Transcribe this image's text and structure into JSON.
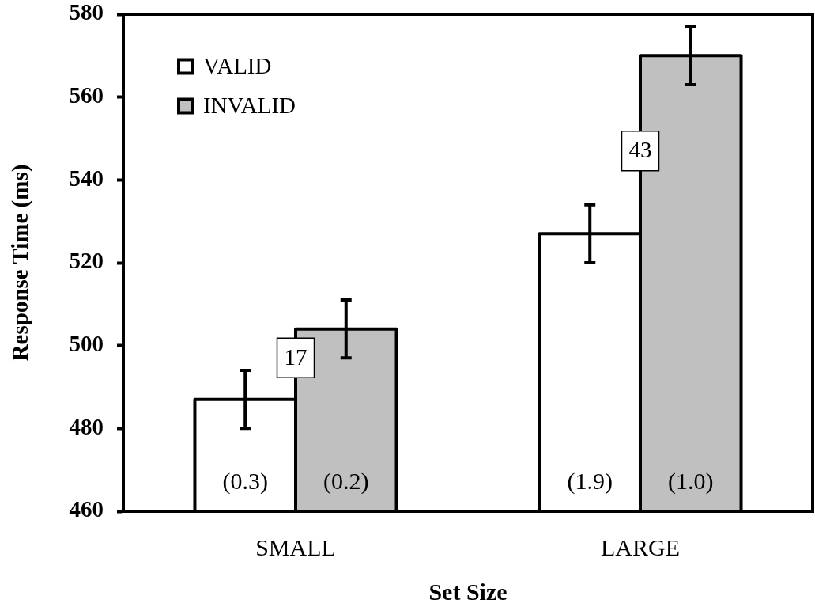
{
  "chart_data": {
    "type": "bar",
    "categories": [
      "SMALL",
      "LARGE"
    ],
    "xlabel": "Set Size",
    "ylabel": "Response Time (ms)",
    "series": [
      {
        "name": "VALID",
        "color": "#ffffff",
        "values": [
          487,
          527
        ],
        "errors": [
          7,
          7
        ]
      },
      {
        "name": "INVALID",
        "color": "#c0c0c0",
        "values": [
          504,
          570
        ],
        "errors": [
          7,
          7
        ]
      }
    ],
    "ylim": [
      460,
      580
    ],
    "yticks": [
      460,
      480,
      500,
      520,
      540,
      560,
      580
    ],
    "legend": "top left",
    "annotations": [
      {
        "text": "17",
        "x": "SMALL",
        "y": 497
      },
      {
        "text": "43",
        "x": "LARGE",
        "y": 547
      },
      "(0.3)",
      "(0.2)",
      "(1.9)",
      "(1.0)"
    ]
  }
}
